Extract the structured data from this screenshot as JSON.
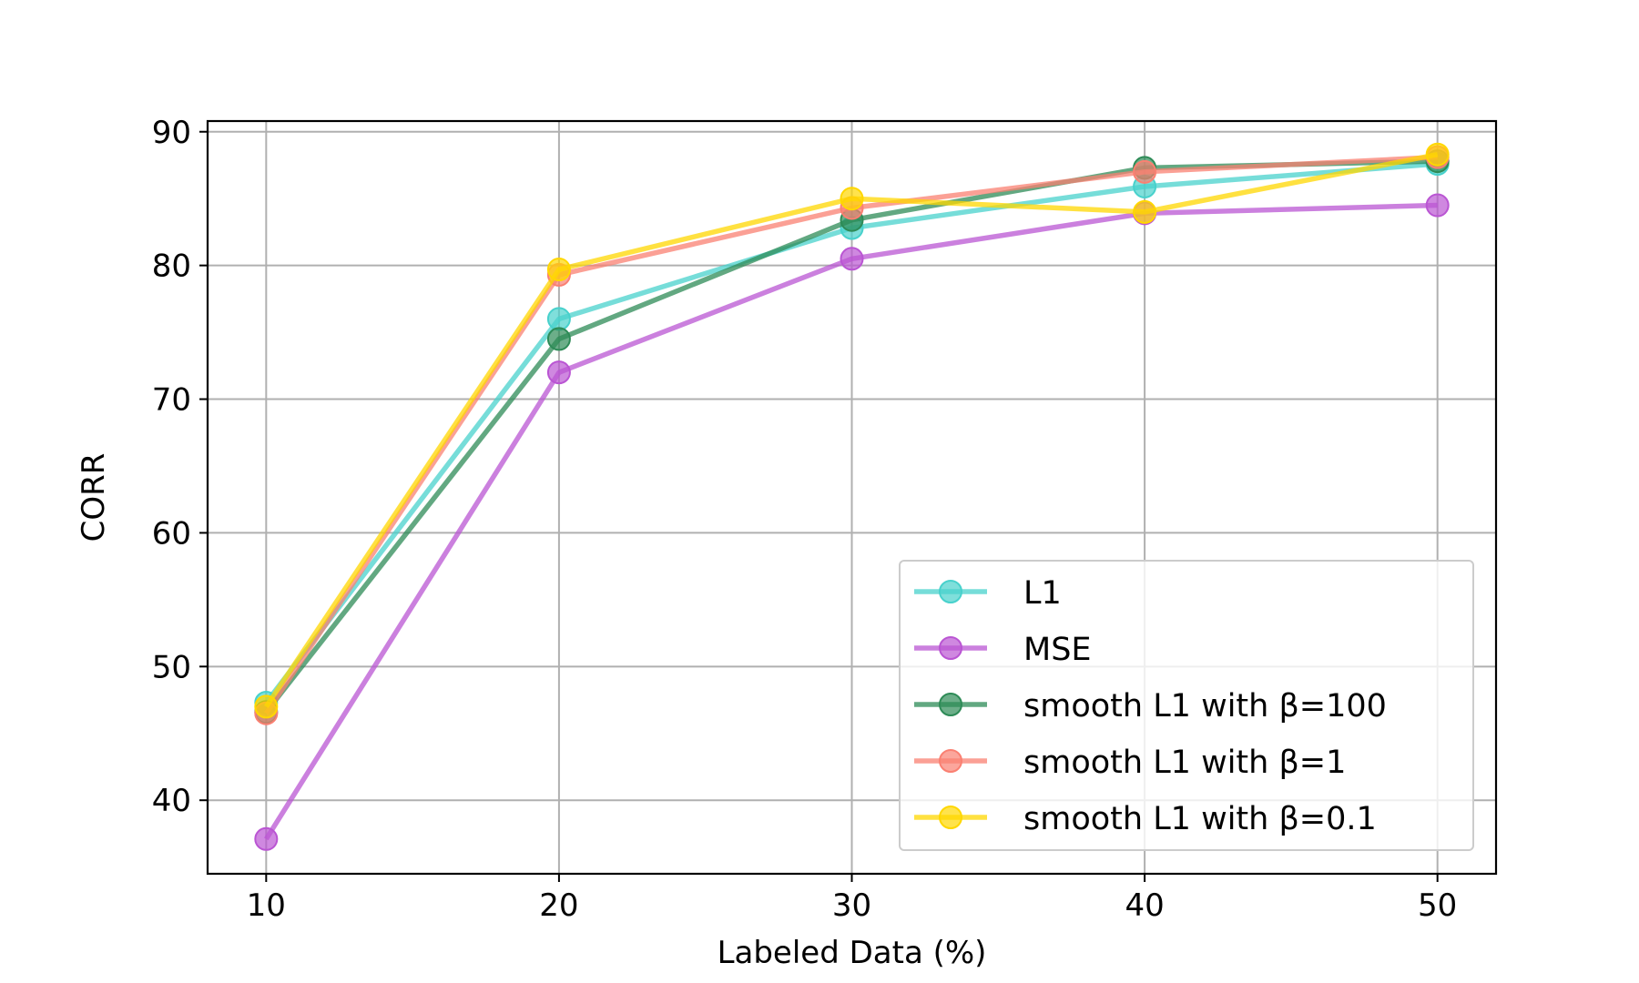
{
  "chart_data": {
    "type": "line",
    "title": "",
    "xlabel": "Labeled Data (%)",
    "ylabel": "CORR",
    "x": [
      10,
      20,
      30,
      40,
      50
    ],
    "xlim": [
      8,
      52
    ],
    "ylim": [
      34.5,
      90.8
    ],
    "xticks": [
      10,
      20,
      30,
      40,
      50
    ],
    "yticks": [
      40,
      50,
      60,
      70,
      80,
      90
    ],
    "grid": true,
    "legend_position": "lower-right",
    "series": [
      {
        "name": "L1",
        "color": "#48d1cc",
        "values": [
          47.3,
          76.0,
          82.8,
          85.9,
          87.6
        ]
      },
      {
        "name": "MSE",
        "color": "#ba55d3",
        "values": [
          37.1,
          72.0,
          80.5,
          83.9,
          84.5
        ]
      },
      {
        "name": "smooth L1 with β=100",
        "color": "#2e8b57",
        "values": [
          46.6,
          74.5,
          83.4,
          87.3,
          87.8
        ]
      },
      {
        "name": "smooth L1 with β=1",
        "color": "#fa8072",
        "values": [
          46.5,
          79.3,
          84.3,
          87.0,
          88.1
        ]
      },
      {
        "name": "smooth L1 with β=0.1",
        "color": "#ffd700",
        "values": [
          47.0,
          79.7,
          85.0,
          84.0,
          88.3
        ]
      }
    ]
  }
}
